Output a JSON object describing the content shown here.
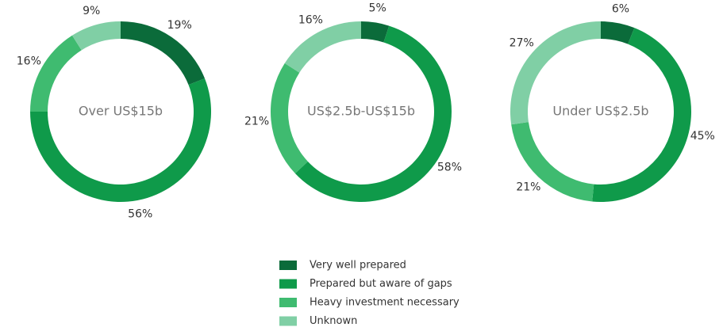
{
  "chart_data": [
    {
      "type": "pie",
      "title": "Over US$15b",
      "values": [
        19,
        56,
        16,
        9
      ],
      "value_labels": [
        "19%",
        "56%",
        "16%",
        "9%"
      ]
    },
    {
      "type": "pie",
      "title": "US$2.5b-US$15b",
      "values": [
        5,
        58,
        21,
        16
      ],
      "value_labels": [
        "5%",
        "58%",
        "21%",
        "16%"
      ]
    },
    {
      "type": "pie",
      "title": "Under US$2.5b",
      "values": [
        6,
        45,
        21,
        27
      ],
      "value_labels": [
        "6%",
        "45%",
        "21%",
        "27%"
      ]
    }
  ],
  "legend": {
    "labels": [
      "Very well prepared",
      "Prepared but aware of gaps",
      "Heavy investment necessary",
      "Unknown"
    ],
    "colors": [
      "#0b6b3a",
      "#0f9a4a",
      "#3fbb70",
      "#80cfa5"
    ]
  }
}
